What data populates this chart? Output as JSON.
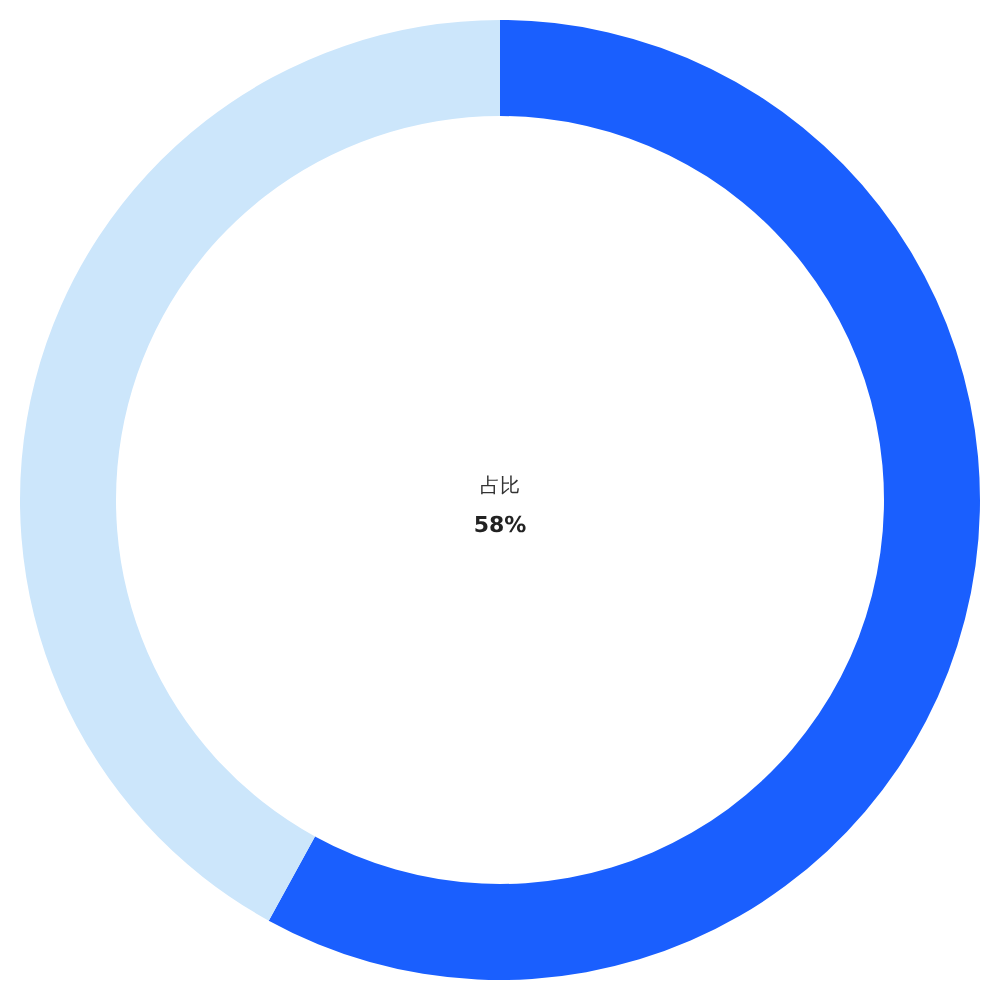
{
  "chart_data": {
    "type": "donut",
    "title": "占比",
    "annotations": [
      "58%"
    ],
    "categories": [
      null,
      null
    ],
    "values": [
      58,
      42
    ],
    "colors": [
      "#1a5ffe",
      "#cce6fb"
    ]
  }
}
